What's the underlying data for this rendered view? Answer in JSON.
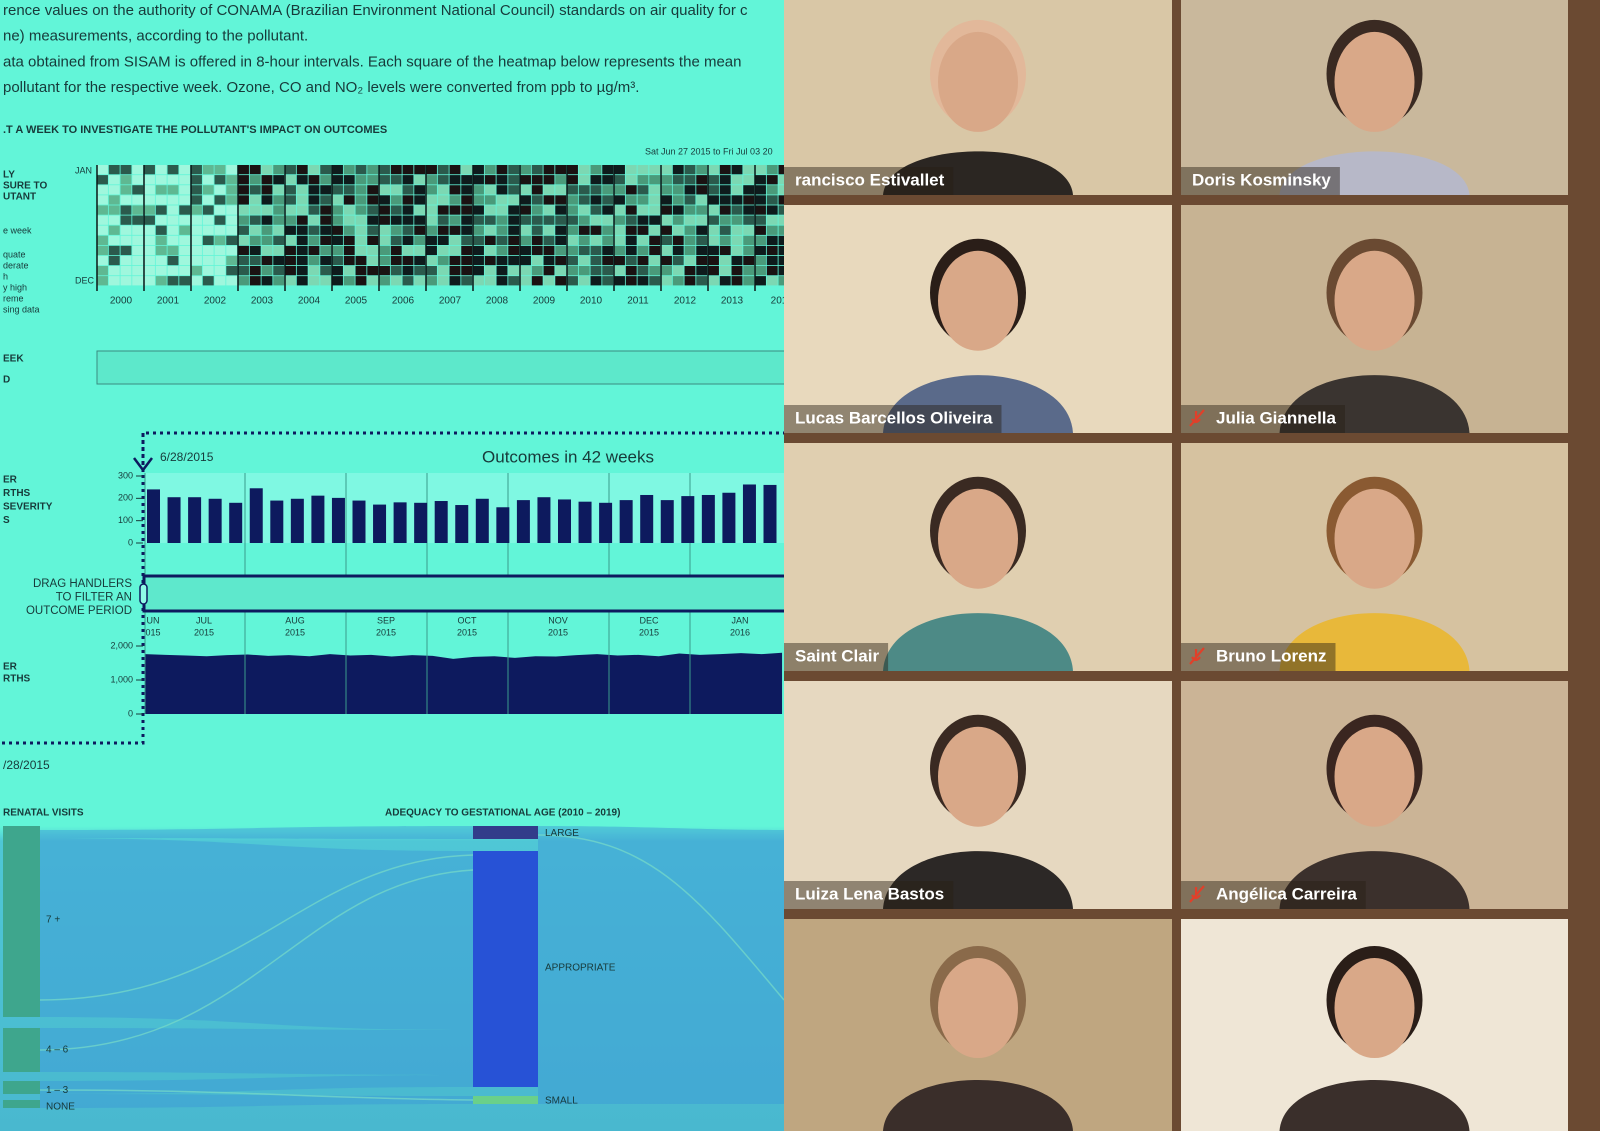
{
  "visualization": {
    "intro_lines": [
      "rence values on the authority of CONAMA (Brazilian Environment National Council) standards on air quality for c",
      "ne) measurements, according to the pollutant.",
      "ata obtained from SISAM is offered in 8-hour intervals. Each square of the heatmap below represents the mean",
      "pollutant for the respective week. Ozone, CO and NO₂ levels were converted from ppb to µg/m³."
    ],
    "section_heading": ".T A WEEK TO INVESTIGATE THE POLLUTANT'S IMPACT ON OUTCOMES",
    "date_range": "Sat Jun 27 2015 to Fri Jul 03 20",
    "heatmap": {
      "title_lines": [
        "LY",
        "SURE TO",
        "UTANT"
      ],
      "week_label": "e week",
      "legend": [
        "quate",
        "derate",
        "h",
        "y high",
        "reme",
        "sing data"
      ],
      "month_top": "JAN",
      "month_bottom": "DEC",
      "years": [
        "2000",
        "2001",
        "2002",
        "2003",
        "2004",
        "2005",
        "2006",
        "2007",
        "2008",
        "2009",
        "2010",
        "2011",
        "2012",
        "2013",
        "201"
      ]
    },
    "week_labels": [
      "EEK",
      "D"
    ],
    "outcomes": {
      "start_date": "6/28/2015",
      "title": "Outcomes in 42 weeks",
      "bar_label_lines": [
        "ER",
        "RTHS",
        "SEVERITY",
        "S"
      ],
      "bars": {
        "type": "bar",
        "ylim": [
          0,
          300
        ],
        "yticks": [
          0,
          100,
          200,
          300
        ],
        "color": "#0d1a5e",
        "values": [
          240,
          205,
          205,
          198,
          180,
          245,
          190,
          198,
          212,
          202,
          190,
          172,
          182,
          180,
          188,
          170,
          198,
          160,
          192,
          205,
          195,
          185,
          180,
          192,
          215,
          192,
          210,
          215,
          225,
          262,
          260,
          250,
          275,
          300
        ]
      },
      "brush_label_lines": [
        "DRAG HANDLERS",
        "TO FILTER AN",
        "OUTCOME PERIOD"
      ],
      "months": [
        {
          "month": "UN",
          "year": "015"
        },
        {
          "month": "JUL",
          "year": "2015"
        },
        {
          "month": "AUG",
          "year": "2015"
        },
        {
          "month": "SEP",
          "year": "2015"
        },
        {
          "month": "OCT",
          "year": "2015"
        },
        {
          "month": "NOV",
          "year": "2015"
        },
        {
          "month": "DEC",
          "year": "2015"
        },
        {
          "month": "JAN",
          "year": "2016"
        }
      ],
      "area_label_lines": [
        "ER",
        "RTHS"
      ],
      "area": {
        "type": "area",
        "ylim": [
          0,
          2000
        ],
        "yticks": [
          0,
          {
            "value": 1000,
            "label": "1,000"
          },
          {
            "value": 2000,
            "label": "2,000"
          }
        ],
        "color": "#0d1a5e",
        "values": [
          1760,
          1740,
          1720,
          1700,
          1730,
          1750,
          1710,
          1730,
          1700,
          1760,
          1720,
          1740,
          1690,
          1730,
          1710,
          1620,
          1680,
          1700,
          1650,
          1700,
          1690,
          1730,
          1760,
          1720,
          1740,
          1700,
          1780,
          1740,
          1760,
          1790,
          1760,
          1800
        ]
      }
    },
    "end_date": "/28/2015",
    "sankey": {
      "left_title": "RENATAL VISITS",
      "right_title": "ADEQUACY TO GESTATIONAL AGE (2010 – 2019)",
      "left_nodes": [
        "7 +",
        "4 – 6",
        "1 – 3",
        "NONE"
      ],
      "right_nodes": [
        "LARGE",
        "APPROPRIATE",
        "SMALL"
      ]
    }
  },
  "participants": [
    {
      "name": "rancisco Estivallet",
      "muted": false
    },
    {
      "name": "Doris Kosminsky",
      "muted": false
    },
    {
      "name": "Lucas Barcellos Oliveira",
      "muted": false
    },
    {
      "name": "Julia Giannella",
      "muted": true
    },
    {
      "name": "Saint Clair",
      "muted": false
    },
    {
      "name": "Bruno Lorenz",
      "muted": true
    },
    {
      "name": "Luiza Lena Bastos",
      "muted": false
    },
    {
      "name": "Angélica Carreira",
      "muted": true
    },
    {
      "muted": false
    },
    {
      "muted": false
    }
  ]
}
